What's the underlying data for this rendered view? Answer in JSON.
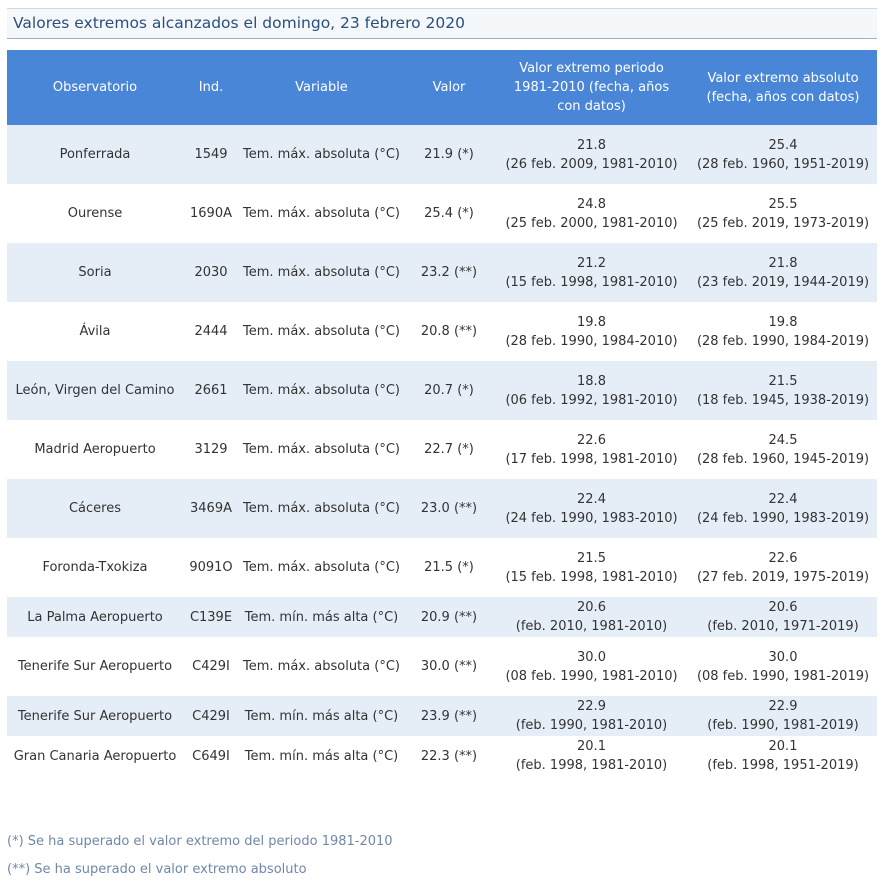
{
  "title": "Valores extremos alcanzados el domingo, 23 febrero 2020",
  "headers": {
    "observatorio": "Observatorio",
    "ind": "Ind.",
    "variable": "Variable",
    "valor": "Valor",
    "extremo_periodo": "Valor extremo periodo 1981-2010 (fecha, años con datos)",
    "extremo_absoluto": "Valor extremo absoluto (fecha, años con datos)"
  },
  "rows": [
    {
      "observatorio": "Ponferrada",
      "ind": "1549",
      "variable": "Tem. máx. absoluta (°C)",
      "valor": "21.9 (*)",
      "periodo_valor": "21.8",
      "periodo_fecha": "(26 feb. 2009, 1981-2010)",
      "absoluto_valor": "25.4",
      "absoluto_fecha": "(28 feb. 1960, 1951-2019)"
    },
    {
      "observatorio": "Ourense",
      "ind": "1690A",
      "variable": "Tem. máx. absoluta (°C)",
      "valor": "25.4 (*)",
      "periodo_valor": "24.8",
      "periodo_fecha": "(25 feb. 2000, 1981-2010)",
      "absoluto_valor": "25.5",
      "absoluto_fecha": "(25 feb. 2019, 1973-2019)"
    },
    {
      "observatorio": "Soria",
      "ind": "2030",
      "variable": "Tem. máx. absoluta (°C)",
      "valor": "23.2 (**)",
      "periodo_valor": "21.2",
      "periodo_fecha": "(15 feb. 1998, 1981-2010)",
      "absoluto_valor": "21.8",
      "absoluto_fecha": "(23 feb. 2019, 1944-2019)"
    },
    {
      "observatorio": "Ávila",
      "ind": "2444",
      "variable": "Tem. máx. absoluta (°C)",
      "valor": "20.8 (**)",
      "periodo_valor": "19.8",
      "periodo_fecha": "(28 feb. 1990, 1984-2010)",
      "absoluto_valor": "19.8",
      "absoluto_fecha": "(28 feb. 1990, 1984-2019)"
    },
    {
      "observatorio": "León, Virgen del Camino",
      "ind": "2661",
      "variable": "Tem. máx. absoluta (°C)",
      "valor": "20.7 (*)",
      "periodo_valor": "18.8",
      "periodo_fecha": "(06 feb. 1992, 1981-2010)",
      "absoluto_valor": "21.5",
      "absoluto_fecha": "(18 feb. 1945, 1938-2019)"
    },
    {
      "observatorio": "Madrid Aeropuerto",
      "ind": "3129",
      "variable": "Tem. máx. absoluta (°C)",
      "valor": "22.7 (*)",
      "periodo_valor": "22.6",
      "periodo_fecha": "(17 feb. 1998, 1981-2010)",
      "absoluto_valor": "24.5",
      "absoluto_fecha": "(28 feb. 1960, 1945-2019)"
    },
    {
      "observatorio": "Cáceres",
      "ind": "3469A",
      "variable": "Tem. máx. absoluta (°C)",
      "valor": "23.0 (**)",
      "periodo_valor": "22.4",
      "periodo_fecha": "(24 feb. 1990, 1983-2010)",
      "absoluto_valor": "22.4",
      "absoluto_fecha": "(24 feb. 1990, 1983-2019)"
    },
    {
      "observatorio": "Foronda-Txokiza",
      "ind": "9091O",
      "variable": "Tem. máx. absoluta (°C)",
      "valor": "21.5 (*)",
      "periodo_valor": "21.5",
      "periodo_fecha": "(15 feb. 1998, 1981-2010)",
      "absoluto_valor": "22.6",
      "absoluto_fecha": "(27 feb. 2019, 1975-2019)"
    },
    {
      "observatorio": "La Palma Aeropuerto",
      "ind": "C139E",
      "variable": "Tem. mín. más alta (°C)",
      "valor": "20.9 (**)",
      "periodo_valor": "20.6",
      "periodo_fecha": "(feb. 2010, 1981-2010)",
      "absoluto_valor": "20.6",
      "absoluto_fecha": "(feb. 2010, 1971-2019)"
    },
    {
      "observatorio": "Tenerife Sur Aeropuerto",
      "ind": "C429I",
      "variable": "Tem. máx. absoluta (°C)",
      "valor": "30.0 (**)",
      "periodo_valor": "30.0",
      "periodo_fecha": "(08 feb. 1990, 1981-2010)",
      "absoluto_valor": "30.0",
      "absoluto_fecha": "(08 feb. 1990, 1981-2019)"
    },
    {
      "observatorio": "Tenerife Sur Aeropuerto",
      "ind": "C429I",
      "variable": "Tem. mín. más alta (°C)",
      "valor": "23.9 (**)",
      "periodo_valor": "22.9",
      "periodo_fecha": "(feb. 1990, 1981-2010)",
      "absoluto_valor": "22.9",
      "absoluto_fecha": "(feb. 1990, 1981-2019)"
    },
    {
      "observatorio": "Gran Canaria Aeropuerto",
      "ind": "C649I",
      "variable": "Tem. mín. más alta (°C)",
      "valor": "22.3 (**)",
      "periodo_valor": "20.1",
      "periodo_fecha": "(feb. 1998, 1981-2010)",
      "absoluto_valor": "20.1",
      "absoluto_fecha": "(feb. 1998, 1951-2019)"
    }
  ],
  "footnotes": {
    "single": "(*) Se ha superado el valor extremo del periodo 1981-2010",
    "double": "(**) Se ha superado el valor extremo absoluto"
  }
}
